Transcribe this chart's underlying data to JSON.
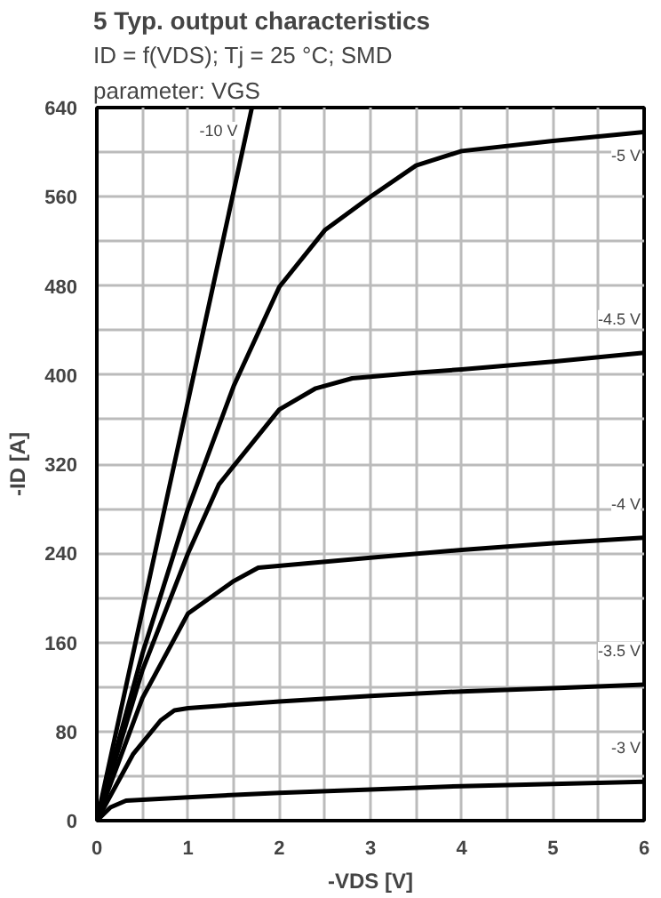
{
  "chart_data": {
    "type": "line",
    "title": "5 Typ. output characteristics",
    "subtitle": "ID = f(VDS); Tj = 25 °C; SMD",
    "annotations": [
      "parameter: VGS"
    ],
    "xlabel": "-VDS [V]",
    "ylabel": "-ID [A]",
    "xlim": [
      0,
      6
    ],
    "ylim": [
      0,
      640
    ],
    "xticks": [
      0,
      {
        "value": 0.5,
        "label": null
      },
      1,
      {
        "value": 1.5,
        "label": null
      },
      2,
      {
        "value": 2.5,
        "label": null
      },
      3,
      {
        "value": 3.5,
        "label": null
      },
      4,
      {
        "value": 4.5,
        "label": null
      },
      5,
      {
        "value": 5.5,
        "label": null
      },
      6
    ],
    "yticks": [
      0,
      {
        "value": 40,
        "label": null
      },
      80,
      {
        "value": 120,
        "label": null
      },
      160,
      {
        "value": 200,
        "label": null
      },
      240,
      {
        "value": 280,
        "label": null
      },
      320,
      {
        "value": 360,
        "label": null
      },
      400,
      {
        "value": 440,
        "label": null
      },
      480,
      {
        "value": 520,
        "label": null
      },
      560,
      {
        "value": 600,
        "label": null
      },
      640
    ],
    "grid": true,
    "marker": "none",
    "line_style": "solid",
    "series": [
      {
        "name": "-10 V",
        "color": "#000000",
        "x": [
          0,
          0.78,
          1.7
        ],
        "values": [
          0,
          294,
          640
        ]
      },
      {
        "name": "-5 V",
        "color": "#000000",
        "x": [
          0,
          0.5,
          1,
          1.5,
          2,
          2.5,
          3,
          3.5,
          4,
          5,
          6
        ],
        "values": [
          0,
          150,
          280,
          390,
          479,
          530,
          560,
          588,
          601,
          610,
          618
        ]
      },
      {
        "name": "-4.5 V",
        "color": "#000000",
        "x": [
          0,
          0.5,
          1,
          1.34,
          2,
          2.4,
          2.8,
          3.5,
          4,
          5,
          6
        ],
        "values": [
          0,
          135,
          240,
          302,
          369,
          388,
          397,
          402,
          405,
          412,
          420
        ]
      },
      {
        "name": "-4 V",
        "color": "#000000",
        "x": [
          0,
          0.5,
          1,
          1.5,
          1.77,
          3,
          4,
          5,
          6
        ],
        "values": [
          0,
          110,
          186,
          215,
          227,
          236,
          243,
          249,
          254
        ]
      },
      {
        "name": "-3.5 V",
        "color": "#000000",
        "x": [
          0,
          0.4,
          0.7,
          0.85,
          1,
          2,
          3,
          4,
          5,
          6
        ],
        "values": [
          0,
          60,
          90,
          99,
          101,
          107,
          112,
          116,
          119,
          122
        ]
      },
      {
        "name": "-3 V",
        "color": "#000000",
        "x": [
          0,
          0.15,
          0.32,
          1,
          2,
          3,
          4,
          5,
          6
        ],
        "values": [
          0,
          12,
          18,
          21,
          25,
          28,
          31,
          33,
          35
        ]
      }
    ]
  }
}
